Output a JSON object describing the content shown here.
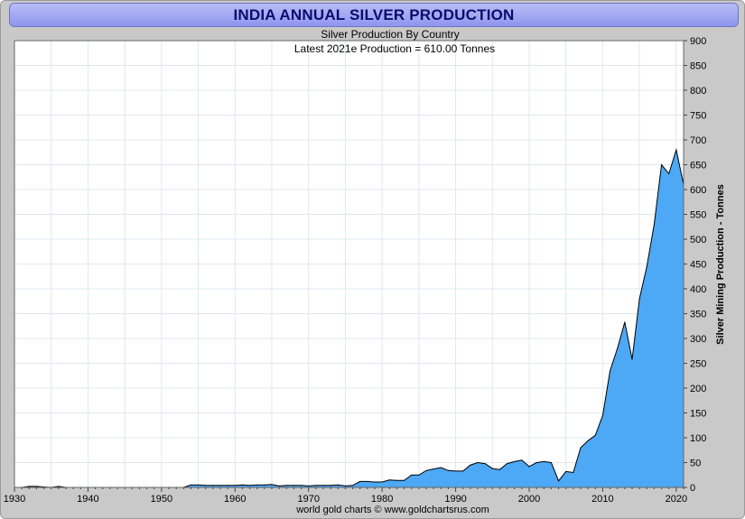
{
  "title": "INDIA ANNUAL SILVER PRODUCTION",
  "subtitle": "Silver Production By Country",
  "annotation": "Latest 2021e  Production = 610.00 Tonnes",
  "footer": "world gold charts © www.goldchartsrus.com",
  "colors": {
    "fill": "#4da8f5",
    "line": "#000000",
    "title": "#0b0b6e",
    "title_bg": "#a3a8f2"
  },
  "chart_data": {
    "type": "area",
    "ylabel": "Silver Mining Production - Tonnes",
    "xlim": [
      1930,
      2021
    ],
    "ylim": [
      0,
      900
    ],
    "grid": true,
    "x_ticks": [
      "1930",
      "1940",
      "1950",
      "1960",
      "1970",
      "1980",
      "1990",
      "2000",
      "2010",
      "2020"
    ],
    "y_ticks": [
      "0",
      "50",
      "100",
      "150",
      "200",
      "250",
      "300",
      "350",
      "400",
      "450",
      "500",
      "550",
      "600",
      "650",
      "700",
      "750",
      "800",
      "850",
      "900"
    ],
    "x": [
      1930,
      1931,
      1932,
      1933,
      1934,
      1935,
      1936,
      1937,
      1938,
      1939,
      1940,
      1941,
      1942,
      1943,
      1944,
      1945,
      1946,
      1947,
      1948,
      1949,
      1950,
      1951,
      1952,
      1953,
      1954,
      1955,
      1956,
      1957,
      1958,
      1959,
      1960,
      1961,
      1962,
      1963,
      1964,
      1965,
      1966,
      1967,
      1968,
      1969,
      1970,
      1971,
      1972,
      1973,
      1974,
      1975,
      1976,
      1977,
      1978,
      1979,
      1980,
      1981,
      1982,
      1983,
      1984,
      1985,
      1986,
      1987,
      1988,
      1989,
      1990,
      1991,
      1992,
      1993,
      1994,
      1995,
      1996,
      1997,
      1998,
      1999,
      2000,
      2001,
      2002,
      2003,
      2004,
      2005,
      2006,
      2007,
      2008,
      2009,
      2010,
      2011,
      2012,
      2013,
      2014,
      2015,
      2016,
      2017,
      2018,
      2019,
      2020,
      2021
    ],
    "values": [
      0,
      0,
      2,
      2,
      1,
      0,
      2,
      0,
      0,
      0,
      0,
      0,
      0,
      0,
      0,
      0,
      0,
      0,
      0,
      0,
      0,
      0,
      0,
      0,
      5,
      5,
      4,
      4,
      4,
      4,
      4,
      5,
      4,
      5,
      5,
      6,
      3,
      4,
      4,
      4,
      3,
      4,
      4,
      4,
      5,
      3,
      4,
      12,
      12,
      11,
      11,
      15,
      14,
      14,
      25,
      25,
      34,
      37,
      40,
      34,
      33,
      33,
      45,
      50,
      48,
      38,
      36,
      48,
      52,
      55,
      42,
      50,
      52,
      50,
      13,
      32,
      30,
      80,
      94,
      105,
      145,
      235,
      280,
      333,
      258,
      380,
      445,
      530,
      650,
      632,
      680,
      610
    ]
  }
}
